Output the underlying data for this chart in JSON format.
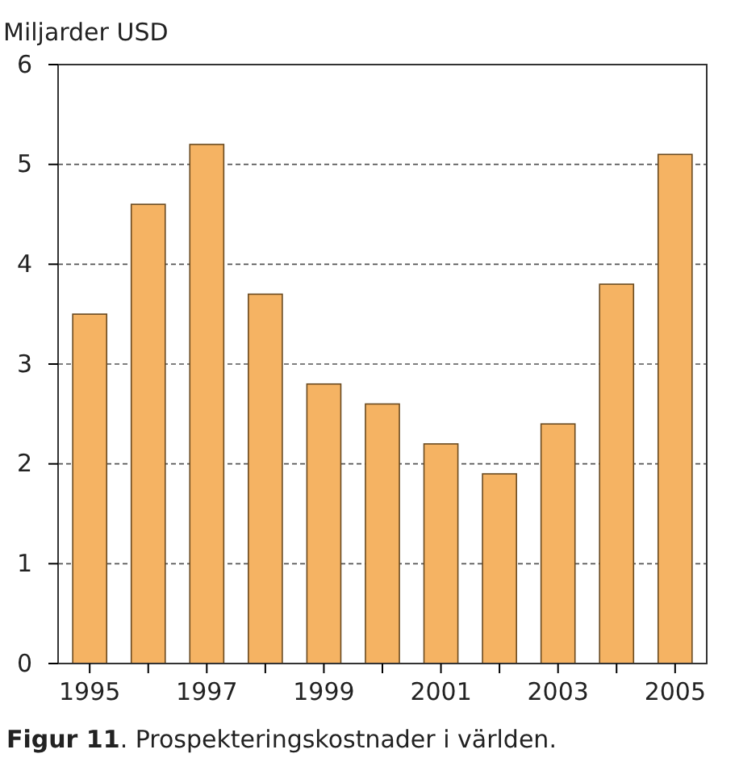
{
  "chart_data": {
    "type": "bar",
    "ylabel": "Miljarder USD",
    "categories": [
      "1995",
      null,
      "1997",
      null,
      "1999",
      null,
      "2001",
      null,
      "2003",
      null,
      "2005"
    ],
    "values": [
      3.5,
      4.6,
      5.2,
      3.7,
      2.8,
      2.6,
      2.2,
      1.9,
      2.4,
      3.8,
      5.1
    ],
    "color": "#f5b363",
    "ylim": [
      0,
      6
    ],
    "yticks": [
      0,
      1,
      2,
      3,
      4,
      5,
      6
    ],
    "grid": "y",
    "annotations": [
      "Figur 11. Prospekteringskostnader i världen."
    ]
  }
}
